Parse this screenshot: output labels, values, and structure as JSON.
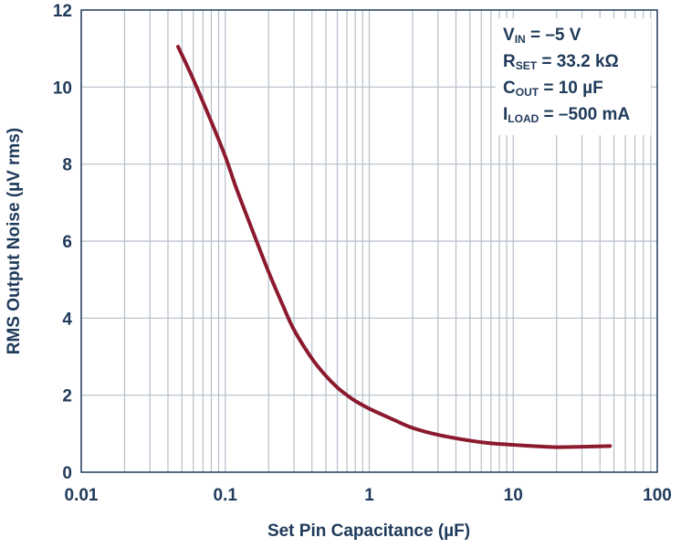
{
  "chart_data": {
    "type": "line",
    "xlabel": "Set Pin Capacitance (µF)",
    "ylabel": "RMS Output Noise (µV rms)",
    "x_scale": "log",
    "xlim": [
      0.01,
      100
    ],
    "ylim": [
      0,
      12
    ],
    "x_ticks": [
      "0.01",
      "0.1",
      "1",
      "10",
      "100"
    ],
    "y_ticks": [
      "0",
      "2",
      "4",
      "6",
      "8",
      "10",
      "12"
    ],
    "grid": true,
    "series_color": "#8b1a2e",
    "series": [
      {
        "x": [
          0.047,
          0.06,
          0.08,
          0.1,
          0.12,
          0.15,
          0.2,
          0.25,
          0.3,
          0.4,
          0.5,
          0.6,
          0.7,
          0.8,
          1.0,
          1.5,
          2.0,
          3.0,
          5.0,
          7.0,
          10.0,
          15.0,
          20.0,
          30.0,
          47.0
        ],
        "y": [
          11.05,
          10.2,
          9.1,
          8.2,
          7.35,
          6.4,
          5.2,
          4.35,
          3.7,
          2.95,
          2.5,
          2.2,
          2.0,
          1.85,
          1.65,
          1.35,
          1.15,
          0.97,
          0.82,
          0.75,
          0.71,
          0.67,
          0.65,
          0.66,
          0.68
        ]
      }
    ],
    "annotations": [
      {
        "main": "V",
        "sub": "IN",
        "rest": " = –5 V"
      },
      {
        "main": "R",
        "sub": "SET",
        "rest": " = 33.2 kΩ"
      },
      {
        "main": "C",
        "sub": "OUT",
        "rest": " = 10 µF"
      },
      {
        "main": "I",
        "sub": "LOAD",
        "rest": " = –500 mA"
      }
    ]
  }
}
